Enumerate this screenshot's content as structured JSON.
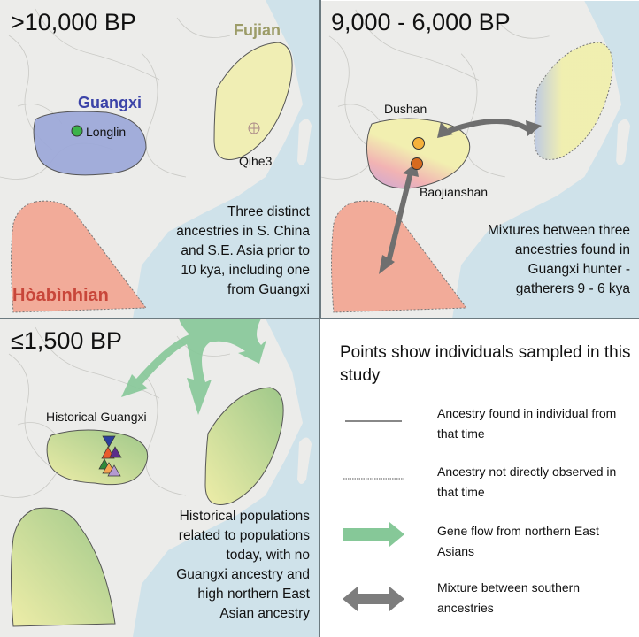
{
  "panels": [
    {
      "title": ">10,000 BP",
      "labels": {
        "guangxi": "Guangxi",
        "longlin": "Longlin",
        "fujian": "Fujian",
        "qihe3": "Qihe3",
        "hoabinhian": "Hòabìnhian"
      },
      "caption": [
        "Three distinct",
        "ancestries in S. China",
        "and S.E. Asia prior to",
        "10 kya, including one",
        "from Guangxi"
      ]
    },
    {
      "title": "9,000 - 6,000 BP",
      "labels": {
        "dushan": "Dushan",
        "baojianshan": "Baojianshan"
      },
      "caption": [
        "Mixtures between three",
        "ancestries found in",
        "Guangxi hunter -",
        "gatherers 9 - 6 kya"
      ]
    },
    {
      "title": "≤1,500 BP",
      "labels": {
        "historical_guangxi": "Historical Guangxi"
      },
      "caption": [
        "Historical populations",
        "related to populations",
        "today, with no",
        "Guangxi ancestry and",
        "high northern East",
        "Asian ancestry"
      ]
    }
  ],
  "legend": {
    "title": "Points show individuals sampled in this study",
    "items": [
      {
        "symbol": "solid-line",
        "label": "Ancestry found in individual from that time"
      },
      {
        "symbol": "dotted-line",
        "label": "Ancestry not directly observed in that time"
      },
      {
        "symbol": "green-arrow",
        "label": "Gene flow from northern East Asians"
      },
      {
        "symbol": "gray-double-arrow",
        "label": "Mixture between southern ancestries"
      }
    ]
  },
  "colors": {
    "sea": "#cfe2ea",
    "land": "#ececea",
    "guangxi": "#9aa6d8",
    "fujian": "#f1efaa",
    "hoabinhian": "#f2a895",
    "gene_flow": "#86c898",
    "mixture_arrow": "#7d7d7d",
    "guangxi_label": "#3b43a8",
    "fujian_label": "#9c9c68",
    "hoabinhian_label": "#c8463a"
  }
}
